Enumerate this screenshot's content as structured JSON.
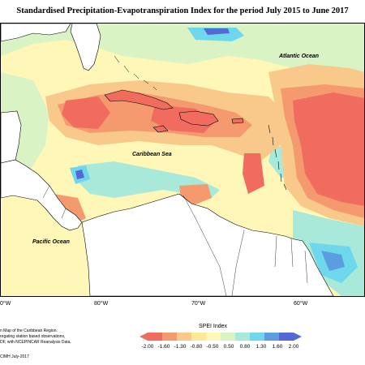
{
  "title": "Standardised Precipitation-Evapotranspiration Index for the period July 2015 to June 2017",
  "map": {
    "labels": {
      "atlantic": "Atlantic Ocean",
      "caribbean": "Caribbean Sea",
      "pacific": "Pacific Ocean"
    },
    "longitudes": [
      "0°W",
      "80°W",
      "70°W",
      "60°W"
    ]
  },
  "credits": {
    "line1": "n Map of the Caribbean Region.",
    "line2": "regating station based observations,",
    "line3": "DF, with NCEPINCAR Reanalysis Data.",
    "line4": "CIMH July-2017"
  },
  "legend": {
    "title": "SPEI Index",
    "ticks": [
      "-2.00",
      "-1.60",
      "-1.30",
      "-0.80",
      "-0.50",
      "0.50",
      "0.80",
      "1.30",
      "1.60",
      "2.00"
    ],
    "colors": [
      "#f06c5f",
      "#f59a6e",
      "#f8c98a",
      "#fbe995",
      "#fff7b8",
      "#d9f3c4",
      "#a9e9d9",
      "#6fd7ec",
      "#5b9ee0",
      "#5469d6"
    ]
  }
}
